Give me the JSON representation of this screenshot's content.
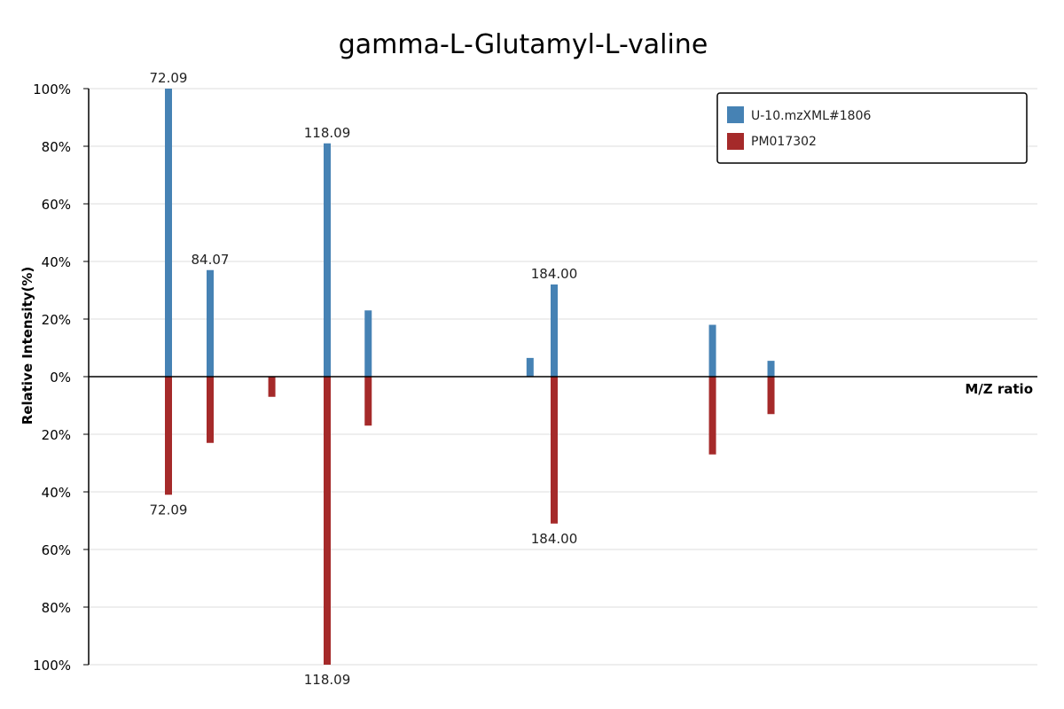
{
  "chart_data": {
    "type": "bar",
    "title": "gamma-L-Glutamyl-L-valine",
    "xlabel": "M/Z ratio",
    "ylabel": "Relative Intensity(%)",
    "ylim": [
      -100,
      100
    ],
    "y_ticks": [
      "100%",
      "80%",
      "60%",
      "40%",
      "20%",
      "0%",
      "20%",
      "40%",
      "60%",
      "80%",
      "100%"
    ],
    "grid": true,
    "legend_position": "top-right",
    "series": [
      {
        "name": "U-10.mzXML#1806",
        "color": "#4682b4",
        "direction": "up",
        "peaks": [
          {
            "mz": 72.09,
            "intensity": 100,
            "label": "72.09"
          },
          {
            "mz": 84.07,
            "intensity": 37,
            "label": "84.07"
          },
          {
            "mz": 118.09,
            "intensity": 81,
            "label": "118.09"
          },
          {
            "mz": 130,
            "intensity": 23,
            "label": ""
          },
          {
            "mz": 177,
            "intensity": 6.5,
            "label": ""
          },
          {
            "mz": 184.0,
            "intensity": 32,
            "label": "184.00"
          },
          {
            "mz": 230,
            "intensity": 18,
            "label": ""
          },
          {
            "mz": 247,
            "intensity": 5.5,
            "label": ""
          }
        ]
      },
      {
        "name": "PM017302",
        "color": "#a52a2a",
        "direction": "down",
        "peaks": [
          {
            "mz": 72.09,
            "intensity": 41,
            "label": "72.09"
          },
          {
            "mz": 84.07,
            "intensity": 23,
            "label": ""
          },
          {
            "mz": 102,
            "intensity": 7,
            "label": ""
          },
          {
            "mz": 118.09,
            "intensity": 100,
            "label": "118.09"
          },
          {
            "mz": 130,
            "intensity": 17,
            "label": ""
          },
          {
            "mz": 184.0,
            "intensity": 51,
            "label": "184.00"
          },
          {
            "mz": 230,
            "intensity": 27,
            "label": ""
          },
          {
            "mz": 247,
            "intensity": 13,
            "label": ""
          }
        ]
      }
    ]
  }
}
